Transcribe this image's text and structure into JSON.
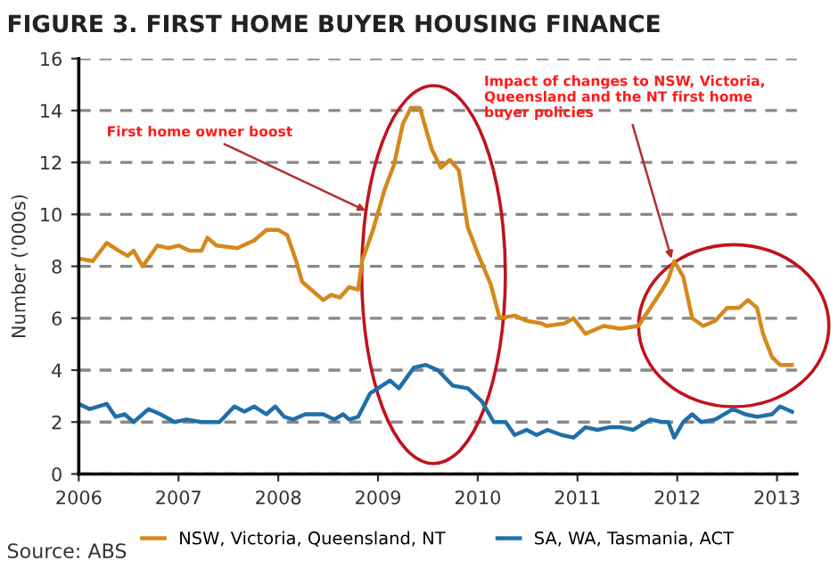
{
  "chart_data": {
    "type": "line",
    "title": "FIGURE 3. FIRST HOME BUYER HOUSING FINANCE",
    "ylabel": "Number ('000s)",
    "xlim": [
      2006,
      2013.2
    ],
    "xticks": [
      2006,
      2007,
      2008,
      2009,
      2010,
      2011,
      2012,
      2013
    ],
    "ylim": [
      0,
      16
    ],
    "yticks": [
      0,
      2,
      4,
      6,
      8,
      10,
      12,
      14,
      16
    ],
    "grid": "y",
    "legend": "bottom",
    "marker": "none",
    "line_style": "solid",
    "series": [
      {
        "name": "NSW, Victoria, Queensland, NT",
        "color": "#d4891c",
        "x": [
          2006.0,
          2006.14,
          2006.28,
          2006.4,
          2006.49,
          2006.55,
          2006.64,
          2006.79,
          2006.9,
          2007.0,
          2007.11,
          2007.23,
          2007.29,
          2007.38,
          2007.59,
          2007.76,
          2007.88,
          2008.0,
          2008.09,
          2008.18,
          2008.24,
          2008.33,
          2008.45,
          2008.53,
          2008.62,
          2008.71,
          2008.8,
          2008.84,
          2008.95,
          2009.07,
          2009.16,
          2009.25,
          2009.33,
          2009.42,
          2009.54,
          2009.63,
          2009.72,
          2009.81,
          2009.9,
          2010.01,
          2010.13,
          2010.22,
          2010.37,
          2010.49,
          2010.64,
          2010.69,
          2010.87,
          2010.96,
          2011.08,
          2011.26,
          2011.43,
          2011.61,
          2011.73,
          2011.85,
          2011.91,
          2011.97,
          2012.06,
          2012.15,
          2012.26,
          2012.38,
          2012.5,
          2012.62,
          2012.71,
          2012.8,
          2012.86,
          2012.95,
          2013.03,
          2013.15
        ],
        "values": [
          8.3,
          8.2,
          8.9,
          8.6,
          8.4,
          8.6,
          8.0,
          8.8,
          8.7,
          8.8,
          8.6,
          8.6,
          9.1,
          8.8,
          8.7,
          9.0,
          9.4,
          9.4,
          9.2,
          8.2,
          7.4,
          7.1,
          6.7,
          6.9,
          6.8,
          7.2,
          7.1,
          8.2,
          9.4,
          11.0,
          11.9,
          13.5,
          14.1,
          14.1,
          12.5,
          11.8,
          12.1,
          11.7,
          9.5,
          8.4,
          7.3,
          6.0,
          6.1,
          5.9,
          5.8,
          5.7,
          5.8,
          6.0,
          5.4,
          5.7,
          5.6,
          5.7,
          6.4,
          7.1,
          7.5,
          8.2,
          7.6,
          6.0,
          5.7,
          5.9,
          6.4,
          6.4,
          6.7,
          6.4,
          5.4,
          4.5,
          4.2,
          4.2
        ]
      },
      {
        "name": "SA, WA, Tasmania, ACT",
        "color": "#1f6fa8",
        "x": [
          2006.0,
          2006.11,
          2006.28,
          2006.37,
          2006.46,
          2006.55,
          2006.7,
          2006.82,
          2006.96,
          2007.08,
          2007.23,
          2007.41,
          2007.56,
          2007.66,
          2007.76,
          2007.88,
          2007.97,
          2008.06,
          2008.15,
          2008.27,
          2008.45,
          2008.56,
          2008.65,
          2008.71,
          2008.8,
          2008.92,
          2009.0,
          2009.12,
          2009.21,
          2009.36,
          2009.48,
          2009.6,
          2009.75,
          2009.9,
          2010.04,
          2010.16,
          2010.28,
          2010.37,
          2010.49,
          2010.59,
          2010.7,
          2010.84,
          2010.96,
          2011.08,
          2011.2,
          2011.32,
          2011.44,
          2011.56,
          2011.73,
          2011.85,
          2011.91,
          2011.97,
          2012.06,
          2012.15,
          2012.24,
          2012.38,
          2012.56,
          2012.68,
          2012.8,
          2012.95,
          2013.03,
          2013.15
        ],
        "values": [
          2.7,
          2.5,
          2.7,
          2.2,
          2.3,
          2.0,
          2.5,
          2.3,
          2.0,
          2.1,
          2.0,
          2.0,
          2.6,
          2.4,
          2.6,
          2.3,
          2.6,
          2.2,
          2.1,
          2.3,
          2.3,
          2.1,
          2.3,
          2.1,
          2.2,
          3.1,
          3.3,
          3.6,
          3.3,
          4.1,
          4.2,
          4.0,
          3.4,
          3.3,
          2.8,
          2.0,
          2.0,
          1.5,
          1.7,
          1.5,
          1.7,
          1.5,
          1.4,
          1.8,
          1.7,
          1.8,
          1.8,
          1.7,
          2.1,
          2.0,
          2.0,
          1.4,
          2.0,
          2.3,
          2.0,
          2.1,
          2.5,
          2.3,
          2.2,
          2.3,
          2.6,
          2.4
        ]
      }
    ],
    "annotations": [
      {
        "text": "First home owner boost",
        "x": 2008.9,
        "y": 10.1
      },
      {
        "text": "Impact of changes to NSW, Victoria,\nQueensland and the NT first home\nbuyer policies",
        "x": 2011.95,
        "y": 8.2
      },
      "Source: ABS"
    ]
  }
}
